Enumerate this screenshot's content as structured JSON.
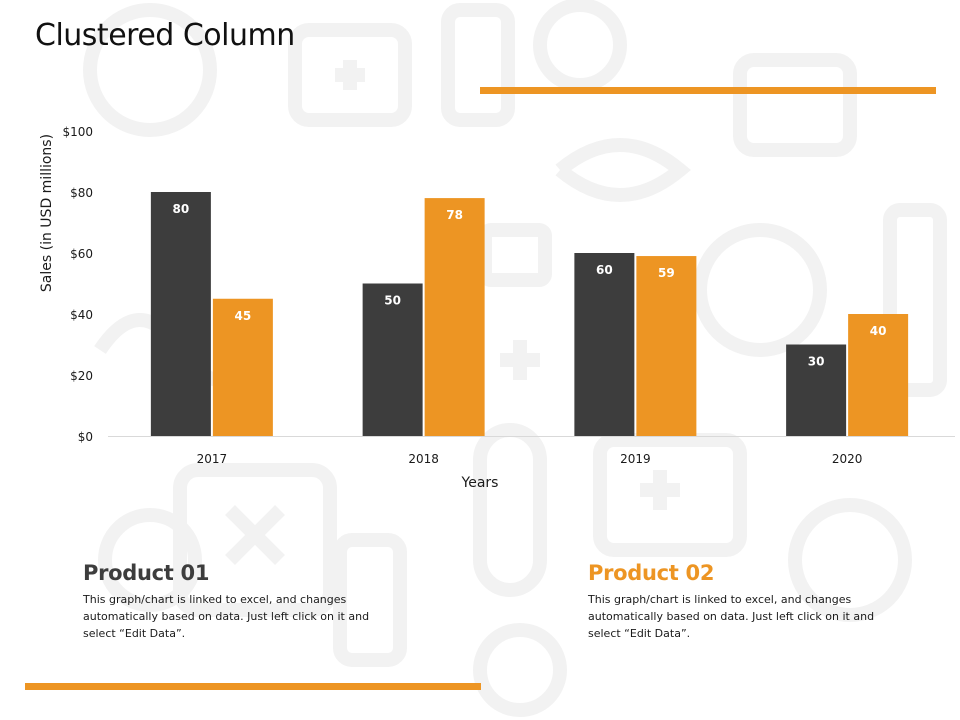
{
  "page": {
    "title": "Clustered Column"
  },
  "colors": {
    "accent": "#ED9523",
    "dark": "#3D3D3D",
    "axis": "#D9D9D9",
    "watermark": "#F2F2F2"
  },
  "chart_data": {
    "type": "bar",
    "categories": [
      "2017",
      "2018",
      "2019",
      "2020"
    ],
    "series": [
      {
        "name": "Product 01",
        "values": [
          80,
          50,
          60,
          30
        ],
        "color": "#3D3D3D"
      },
      {
        "name": "Product 02",
        "values": [
          45,
          78,
          59,
          40
        ],
        "color": "#ED9523"
      }
    ],
    "xlabel": "Years",
    "ylabel": "Sales (in USD millions)",
    "ylim": [
      0,
      100
    ],
    "yticks": [
      "$0",
      "$20",
      "$40",
      "$60",
      "$80",
      "$100"
    ],
    "data_labels": true,
    "grid": false,
    "legend": "below"
  },
  "legend_blocks": [
    {
      "title": "Product 01",
      "text": "This graph/chart is linked to excel, and changes automatically based on data. Just left click on it and select “Edit Data”."
    },
    {
      "title": "Product 02",
      "text": "This graph/chart is linked to excel, and changes automatically based on data. Just left click on it and select “Edit Data”."
    }
  ]
}
